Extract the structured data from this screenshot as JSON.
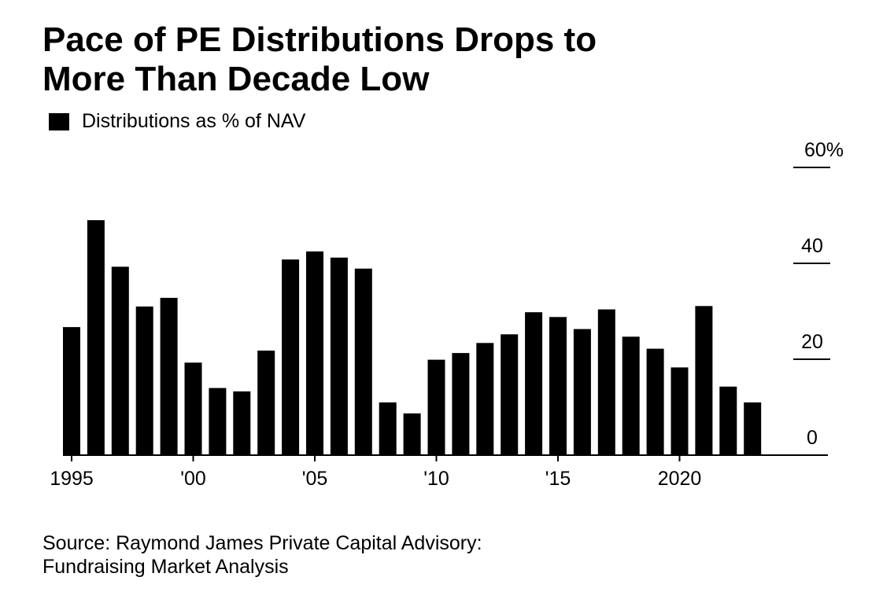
{
  "title_lines": [
    "Pace of PE Distributions Drops to",
    "More Than Decade Low"
  ],
  "source_lines": [
    "Source: Raymond James Private Capital Advisory:",
    "Fundraising Market Analysis"
  ],
  "colors": {
    "bars": "#000000",
    "background": "#ffffff"
  },
  "chart_data": {
    "type": "bar",
    "title": "Pace of PE Distributions Drops to More Than Decade Low",
    "legend": {
      "entries": [
        "Distributions as % of NAV"
      ],
      "placement": "top-left"
    },
    "series": [
      {
        "name": "Distributions as % of NAV",
        "x": [
          1995,
          1996,
          1997,
          1998,
          1999,
          2000,
          2001,
          2002,
          2003,
          2004,
          2005,
          2006,
          2007,
          2008,
          2009,
          2010,
          2011,
          2012,
          2013,
          2014,
          2015,
          2016,
          2017,
          2018,
          2019,
          2020,
          2021,
          2022,
          2023
        ],
        "values": [
          26.7,
          49,
          39.3,
          31,
          32.8,
          19.3,
          14,
          13.3,
          21.8,
          40.8,
          42.5,
          41.2,
          38.9,
          11,
          8.7,
          19.9,
          21.3,
          23.4,
          25.2,
          29.8,
          28.8,
          26.3,
          30.4,
          24.7,
          22.2,
          18.3,
          31.1,
          14.3,
          11
        ]
      }
    ],
    "x_tick_labels": [
      {
        "x": 1995,
        "label": "1995"
      },
      {
        "x": 2000,
        "label": "'00"
      },
      {
        "x": 2005,
        "label": "'05"
      },
      {
        "x": 2010,
        "label": "'10"
      },
      {
        "x": 2015,
        "label": "'15"
      },
      {
        "x": 2020,
        "label": "2020"
      }
    ],
    "y_ticks": [
      {
        "value": 0,
        "label": "0"
      },
      {
        "value": 20,
        "label": "20"
      },
      {
        "value": 40,
        "label": "40"
      },
      {
        "value": 60,
        "label": "60%"
      }
    ],
    "ylim": [
      0,
      60
    ],
    "xlabel": "",
    "ylabel": "",
    "grid": false,
    "y_axis_side": "right"
  }
}
